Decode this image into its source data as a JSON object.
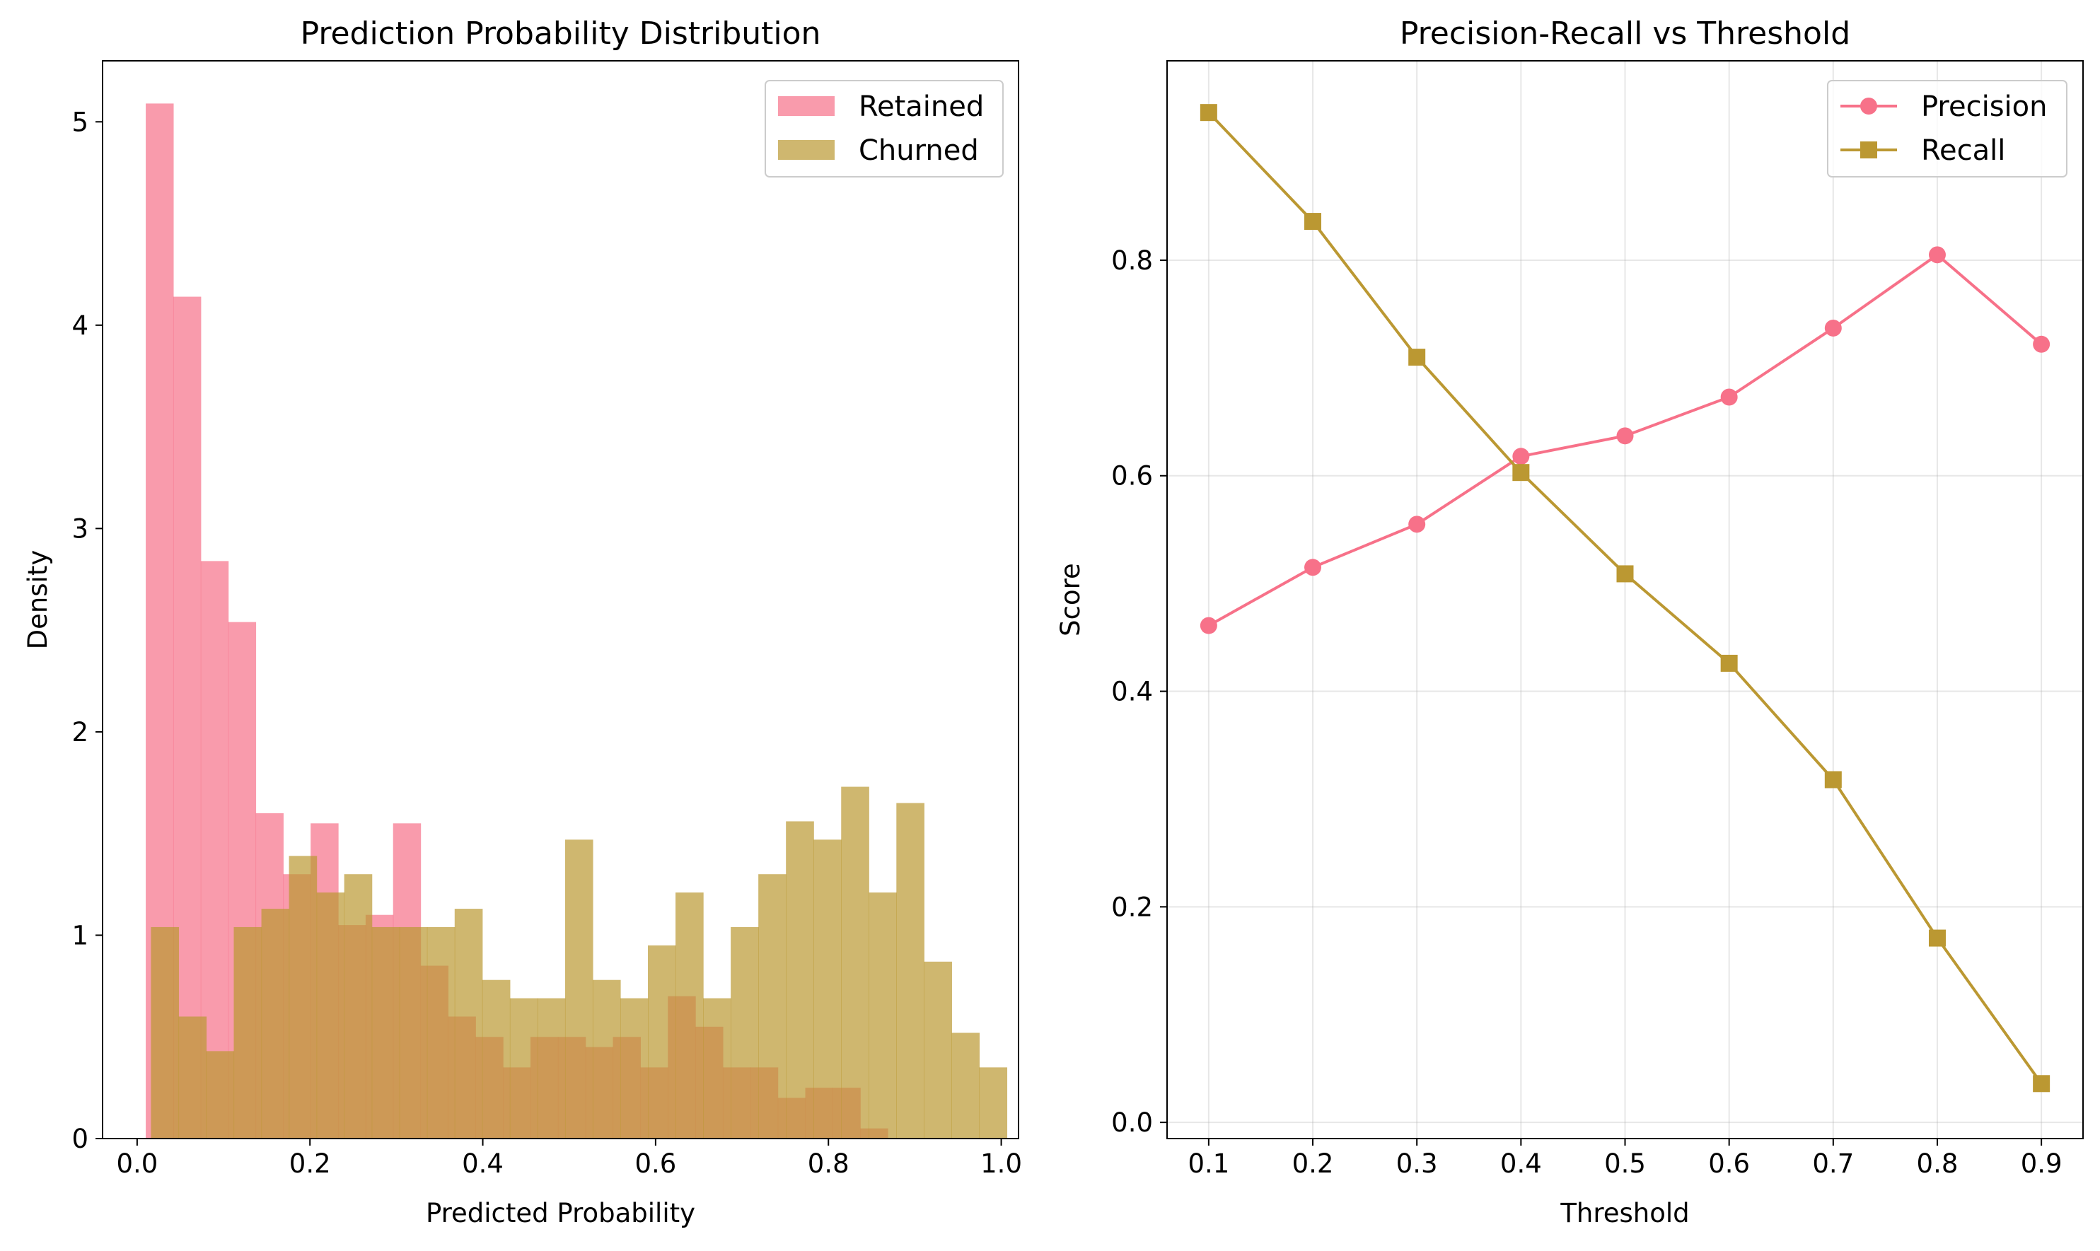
{
  "chart_data": [
    {
      "type": "histogram",
      "title": "Prediction Probability Distribution",
      "xlabel": "Predicted Probability",
      "ylabel": "Density",
      "xlim": [
        -0.04,
        1.02
      ],
      "ylim": [
        0,
        5.3
      ],
      "xticks": [
        0.0,
        0.2,
        0.4,
        0.6,
        0.8,
        1.0
      ],
      "xtick_labels": [
        "0.0",
        "0.2",
        "0.4",
        "0.6",
        "0.8",
        "1.0"
      ],
      "yticks": [
        0,
        1,
        2,
        3,
        4,
        5
      ],
      "ytick_labels": [
        "0",
        "1",
        "2",
        "3",
        "4",
        "5"
      ],
      "grid": false,
      "legend_position": "top-right",
      "series": [
        {
          "name": "Retained",
          "color": "#f77189",
          "opacity": 0.7,
          "bin_start": 0.01,
          "bin_width": 0.0318,
          "values": [
            5.09,
            4.14,
            2.84,
            2.54,
            1.6,
            1.3,
            1.55,
            1.05,
            1.1,
            1.55,
            0.85,
            0.6,
            0.5,
            0.35,
            0.5,
            0.5,
            0.45,
            0.5,
            0.35,
            0.7,
            0.55,
            0.35,
            0.35,
            0.2,
            0.25,
            0.25,
            0.05,
            0,
            0,
            0
          ]
        },
        {
          "name": "Churned",
          "color": "#bb9832",
          "opacity": 0.7,
          "bin_start": 0.016,
          "bin_width": 0.03195,
          "values": [
            1.04,
            0.6,
            0.43,
            1.04,
            1.13,
            1.39,
            1.21,
            1.3,
            1.04,
            1.04,
            1.04,
            1.13,
            0.78,
            0.69,
            0.69,
            1.47,
            0.78,
            0.69,
            0.95,
            1.21,
            0.69,
            1.04,
            1.3,
            1.56,
            1.47,
            1.73,
            1.21,
            1.65,
            0.87,
            0.52,
            0.35
          ]
        }
      ]
    },
    {
      "type": "line",
      "title": "Precision-Recall vs Threshold",
      "xlabel": "Threshold",
      "ylabel": "Score",
      "x": [
        0.1,
        0.2,
        0.3,
        0.4,
        0.5,
        0.6,
        0.7,
        0.8,
        0.9
      ],
      "xlim": [
        0.06,
        0.94
      ],
      "ylim": [
        -0.015,
        0.985
      ],
      "xticks": [
        0.1,
        0.2,
        0.3,
        0.4,
        0.5,
        0.6,
        0.7,
        0.8,
        0.9
      ],
      "xtick_labels": [
        "0.1",
        "0.2",
        "0.3",
        "0.4",
        "0.5",
        "0.6",
        "0.7",
        "0.8",
        "0.9"
      ],
      "yticks": [
        0.0,
        0.2,
        0.4,
        0.6,
        0.8
      ],
      "ytick_labels": [
        "0.0",
        "0.2",
        "0.4",
        "0.6",
        "0.8"
      ],
      "grid": true,
      "legend_position": "top-right",
      "series": [
        {
          "name": "Precision",
          "color": "#f77189",
          "marker": "circle",
          "values": [
            0.461,
            0.515,
            0.555,
            0.618,
            0.637,
            0.673,
            0.737,
            0.805,
            0.722
          ]
        },
        {
          "name": "Recall",
          "color": "#bb9832",
          "marker": "square",
          "values": [
            0.937,
            0.836,
            0.71,
            0.603,
            0.509,
            0.426,
            0.318,
            0.171,
            0.036
          ]
        }
      ]
    }
  ]
}
